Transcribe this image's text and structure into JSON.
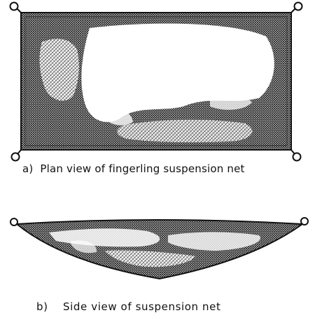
{
  "figure": {
    "panel_a": {
      "caption": "a)  Plan view of fingerling suspension net"
    },
    "panel_b": {
      "caption": "b)    Side view of suspension net"
    }
  },
  "colors": {
    "ink": "#111111",
    "paper": "#ffffff"
  }
}
